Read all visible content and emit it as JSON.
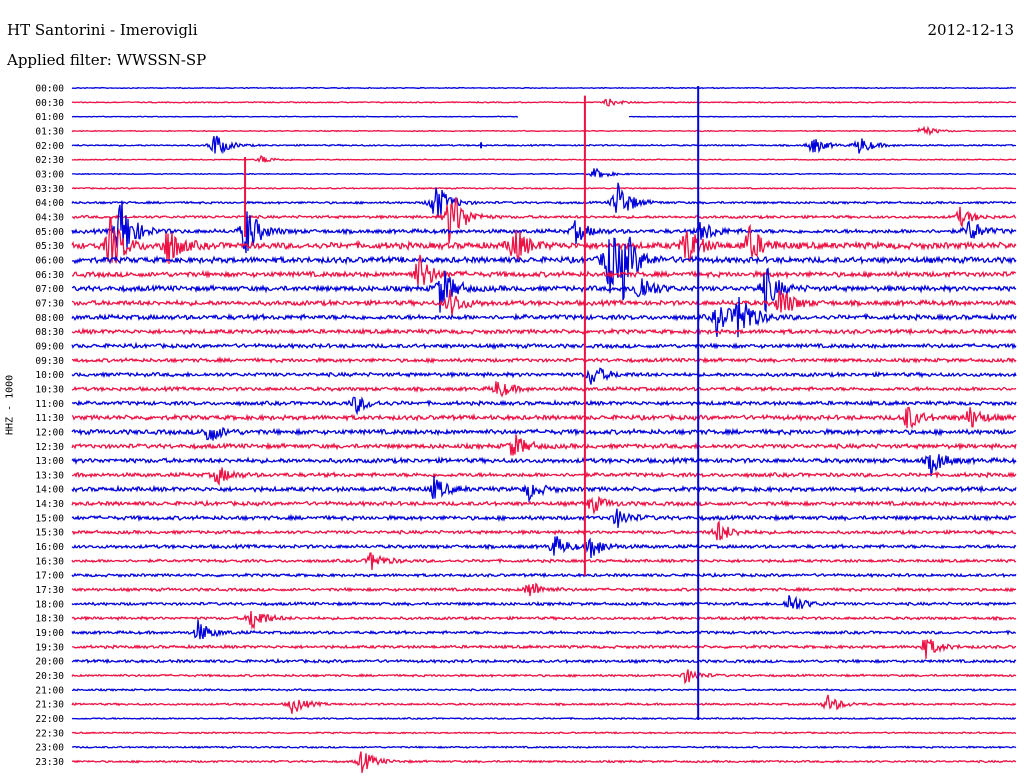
{
  "header": {
    "station": "HT Santorini - Imerovigli",
    "date": "2012-12-13",
    "filter": "Applied filter: WWSSN-SP"
  },
  "chart_data": {
    "type": "line",
    "title": "HT Santorini - Imerovigli",
    "ylabel": "HHZ - 1000",
    "rows": [
      "00:00",
      "00:30",
      "01:00",
      "01:30",
      "02:00",
      "02:30",
      "03:00",
      "03:30",
      "04:00",
      "04:30",
      "05:00",
      "05:30",
      "06:00",
      "06:30",
      "07:00",
      "07:30",
      "08:00",
      "08:30",
      "09:00",
      "09:30",
      "10:00",
      "10:30",
      "11:00",
      "11:30",
      "12:00",
      "12:30",
      "13:00",
      "13:30",
      "14:00",
      "14:30",
      "15:00",
      "15:30",
      "16:00",
      "16:30",
      "17:00",
      "17:30",
      "18:00",
      "18:30",
      "19:00",
      "19:30",
      "20:00",
      "20:30",
      "21:00",
      "21:30",
      "22:00",
      "22:30",
      "23:00",
      "23:30"
    ],
    "row_minutes": 30,
    "colors": [
      "#0000dd",
      "#ee1144"
    ],
    "noise_level": [
      0.5,
      0.6,
      0.4,
      0.5,
      0.8,
      0.6,
      0.5,
      0.7,
      1.2,
      1.5,
      2.2,
      3.5,
      3.2,
      2.8,
      2.8,
      2.6,
      2.6,
      2.3,
      2.2,
      2.0,
      2.1,
      2.0,
      2.1,
      2.5,
      2.6,
      2.4,
      2.5,
      2.2,
      2.4,
      2.2,
      2.2,
      1.8,
      1.9,
      1.6,
      1.6,
      1.6,
      1.6,
      1.5,
      1.6,
      1.6,
      1.6,
      1.2,
      1.0,
      1.1,
      0.8,
      0.8,
      0.9,
      1.1
    ],
    "events": [
      {
        "row": 4,
        "minute": 4.5,
        "amp": 14
      },
      {
        "row": 4,
        "minute": 23.5,
        "amp": 10
      },
      {
        "row": 4,
        "minute": 25,
        "amp": 10
      },
      {
        "row": 1,
        "minute": 17,
        "amp": 4
      },
      {
        "row": 3,
        "minute": 27,
        "amp": 6
      },
      {
        "row": 5,
        "minute": 6,
        "amp": 4
      },
      {
        "row": 10,
        "minute": 1.5,
        "amp": 40
      },
      {
        "row": 10,
        "minute": 5.5,
        "amp": 30
      },
      {
        "row": 10,
        "minute": 16,
        "amp": 12
      },
      {
        "row": 11,
        "minute": 1.2,
        "amp": 30
      },
      {
        "row": 11,
        "minute": 3,
        "amp": 22
      },
      {
        "row": 11,
        "minute": 14,
        "amp": 22
      },
      {
        "row": 11,
        "minute": 19.5,
        "amp": 22
      },
      {
        "row": 11,
        "minute": 21.5,
        "amp": 20
      },
      {
        "row": 12,
        "minute": 17,
        "amp": 40
      },
      {
        "row": 12,
        "minute": 17.5,
        "amp": 30
      },
      {
        "row": 9,
        "minute": 12,
        "amp": 35
      },
      {
        "row": 8,
        "minute": 11.5,
        "amp": 25
      },
      {
        "row": 8,
        "minute": 17.3,
        "amp": 25
      },
      {
        "row": 13,
        "minute": 11,
        "amp": 22
      },
      {
        "row": 14,
        "minute": 11.7,
        "amp": 25
      },
      {
        "row": 14,
        "minute": 18,
        "amp": 18
      },
      {
        "row": 14,
        "minute": 22,
        "amp": 25
      },
      {
        "row": 15,
        "minute": 22.5,
        "amp": 18
      },
      {
        "row": 16,
        "minute": 21.2,
        "amp": 28
      },
      {
        "row": 16,
        "minute": 20.5,
        "amp": 18
      },
      {
        "row": 15,
        "minute": 12,
        "amp": 14
      },
      {
        "row": 10,
        "minute": 20,
        "amp": 12
      },
      {
        "row": 6,
        "minute": 16.6,
        "amp": 6
      },
      {
        "row": 10,
        "minute": 28.5,
        "amp": 12
      },
      {
        "row": 9,
        "minute": 28.2,
        "amp": 10
      },
      {
        "row": 20,
        "minute": 16.5,
        "amp": 12
      },
      {
        "row": 21,
        "minute": 13.5,
        "amp": 10
      },
      {
        "row": 22,
        "minute": 9,
        "amp": 10
      },
      {
        "row": 23,
        "minute": 26.5,
        "amp": 14
      },
      {
        "row": 23,
        "minute": 28.5,
        "amp": 12
      },
      {
        "row": 24,
        "minute": 4.3,
        "amp": 12
      },
      {
        "row": 25,
        "minute": 14,
        "amp": 14
      },
      {
        "row": 26,
        "minute": 27.3,
        "amp": 14
      },
      {
        "row": 27,
        "minute": 4.6,
        "amp": 10
      },
      {
        "row": 28,
        "minute": 11.5,
        "amp": 12
      },
      {
        "row": 28,
        "minute": 14.5,
        "amp": 10
      },
      {
        "row": 29,
        "minute": 16.5,
        "amp": 10
      },
      {
        "row": 30,
        "minute": 17.3,
        "amp": 10
      },
      {
        "row": 31,
        "minute": 20.5,
        "amp": 12
      },
      {
        "row": 32,
        "minute": 15.3,
        "amp": 12
      },
      {
        "row": 32,
        "minute": 16.5,
        "amp": 12
      },
      {
        "row": 33,
        "minute": 9.5,
        "amp": 10
      },
      {
        "row": 35,
        "minute": 14.5,
        "amp": 10
      },
      {
        "row": 36,
        "minute": 22.8,
        "amp": 12
      },
      {
        "row": 37,
        "minute": 5.7,
        "amp": 14
      },
      {
        "row": 38,
        "minute": 4,
        "amp": 12
      },
      {
        "row": 39,
        "minute": 27.1,
        "amp": 12
      },
      {
        "row": 41,
        "minute": 19.5,
        "amp": 8
      },
      {
        "row": 43,
        "minute": 7,
        "amp": 10
      },
      {
        "row": 43,
        "minute": 24,
        "amp": 10
      },
      {
        "row": 47,
        "minute": 9.2,
        "amp": 12
      }
    ],
    "spikes": [
      {
        "row": 11,
        "minute": 16.3,
        "up": 150,
        "down": 330
      },
      {
        "row": 12,
        "minute": 19.9,
        "up": 250,
        "down": 460
      },
      {
        "row": 9,
        "minute": 5.5,
        "up": 60,
        "down": 20
      },
      {
        "row": 4,
        "minute": 13,
        "up": 3,
        "down": 3
      }
    ],
    "gaps": [
      {
        "row": 2,
        "from": 14.2,
        "to": 17.7
      }
    ]
  }
}
